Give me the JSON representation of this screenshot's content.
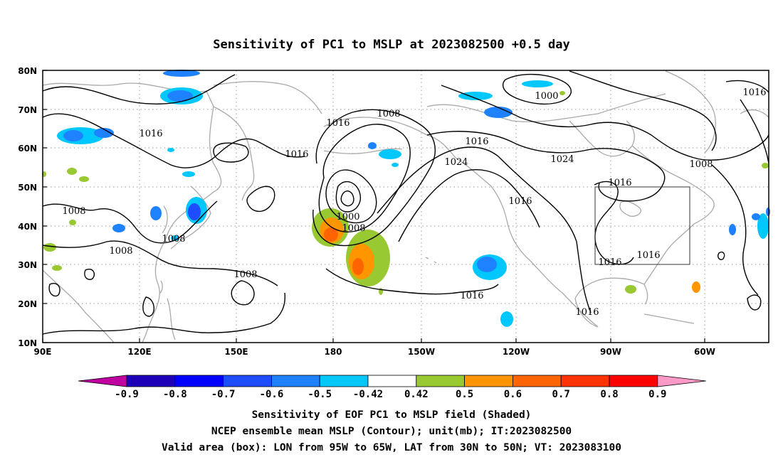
{
  "title": "Sensitivity of PC1 to MSLP at 2023082500 +0.5 day",
  "axes": {
    "lat_ticks": [
      "80N",
      "70N",
      "60N",
      "50N",
      "40N",
      "30N",
      "20N",
      "10N"
    ],
    "lon_ticks": [
      "90E",
      "120E",
      "150E",
      "180",
      "150W",
      "120W",
      "90W",
      "60W"
    ]
  },
  "contour_labels": [
    "1016",
    "1008",
    "1016",
    "1016",
    "1008",
    "1000",
    "1016",
    "1016",
    "1008",
    "1016",
    "1008",
    "1000",
    "1008",
    "1008",
    "1016",
    "1024",
    "1024",
    "1016",
    "1016",
    "1008",
    "1016",
    "1016",
    "1016",
    "1016"
  ],
  "colorbar": {
    "labels": [
      "-0.9",
      "-0.8",
      "-0.7",
      "-0.6",
      "-0.5",
      "-0.42",
      "0.42",
      "0.5",
      "0.6",
      "0.7",
      "0.8",
      "0.9"
    ],
    "colors": [
      "#c000a0",
      "#1e00b8",
      "#0000ff",
      "#1e4cff",
      "#1e82ff",
      "#00c8ff",
      "#ffffff",
      "#98c832",
      "#ff9600",
      "#ff6400",
      "#ff3200",
      "#ff0000",
      "#ff9ac8"
    ]
  },
  "valid_box": {
    "lon_from": "95W",
    "lon_to": "65W",
    "lat_from": "30N",
    "lat_to": "50N"
  },
  "captions": [
    "Sensitivity of EOF PC1 to MSLP field (Shaded)",
    "NCEP ensemble mean MSLP (Contour); unit(mb); IT:2023082500",
    "Valid area (box): LON from 95W to 65W, LAT from 30N to 50N; VT: 2023083100"
  ]
}
